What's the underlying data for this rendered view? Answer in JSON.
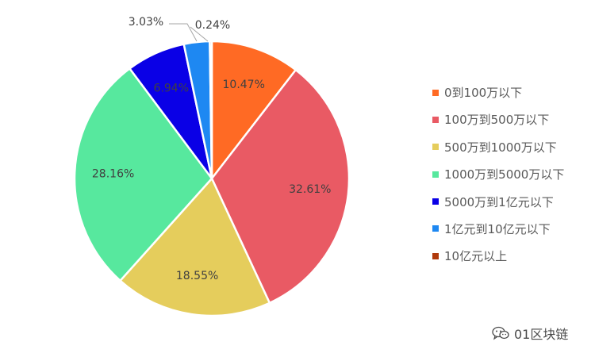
{
  "chart_data": {
    "type": "pie",
    "start_angle_deg": 0,
    "direction": "clockwise",
    "categories": [
      "0到100万以下",
      "100万到500万以下",
      "500万到1000万以下",
      "1000万到5000万以下",
      "5000万到1亿元以下",
      "1亿元到10亿元以下",
      "10亿元以上"
    ],
    "values": [
      10.47,
      32.61,
      18.55,
      28.16,
      6.94,
      3.03,
      0.24
    ],
    "labels": [
      "10.47%",
      "32.61%",
      "18.55%",
      "28.16%",
      "6.94%",
      "3.03%",
      "0.24%"
    ],
    "colors": [
      "#FF6A24",
      "#E95A64",
      "#E5CD5C",
      "#57E89E",
      "#0A00E6",
      "#1E88F2",
      "#B03A0C"
    ],
    "legend_position": "right"
  },
  "watermark": {
    "icon": "wechat-icon",
    "text": "01区块链"
  }
}
